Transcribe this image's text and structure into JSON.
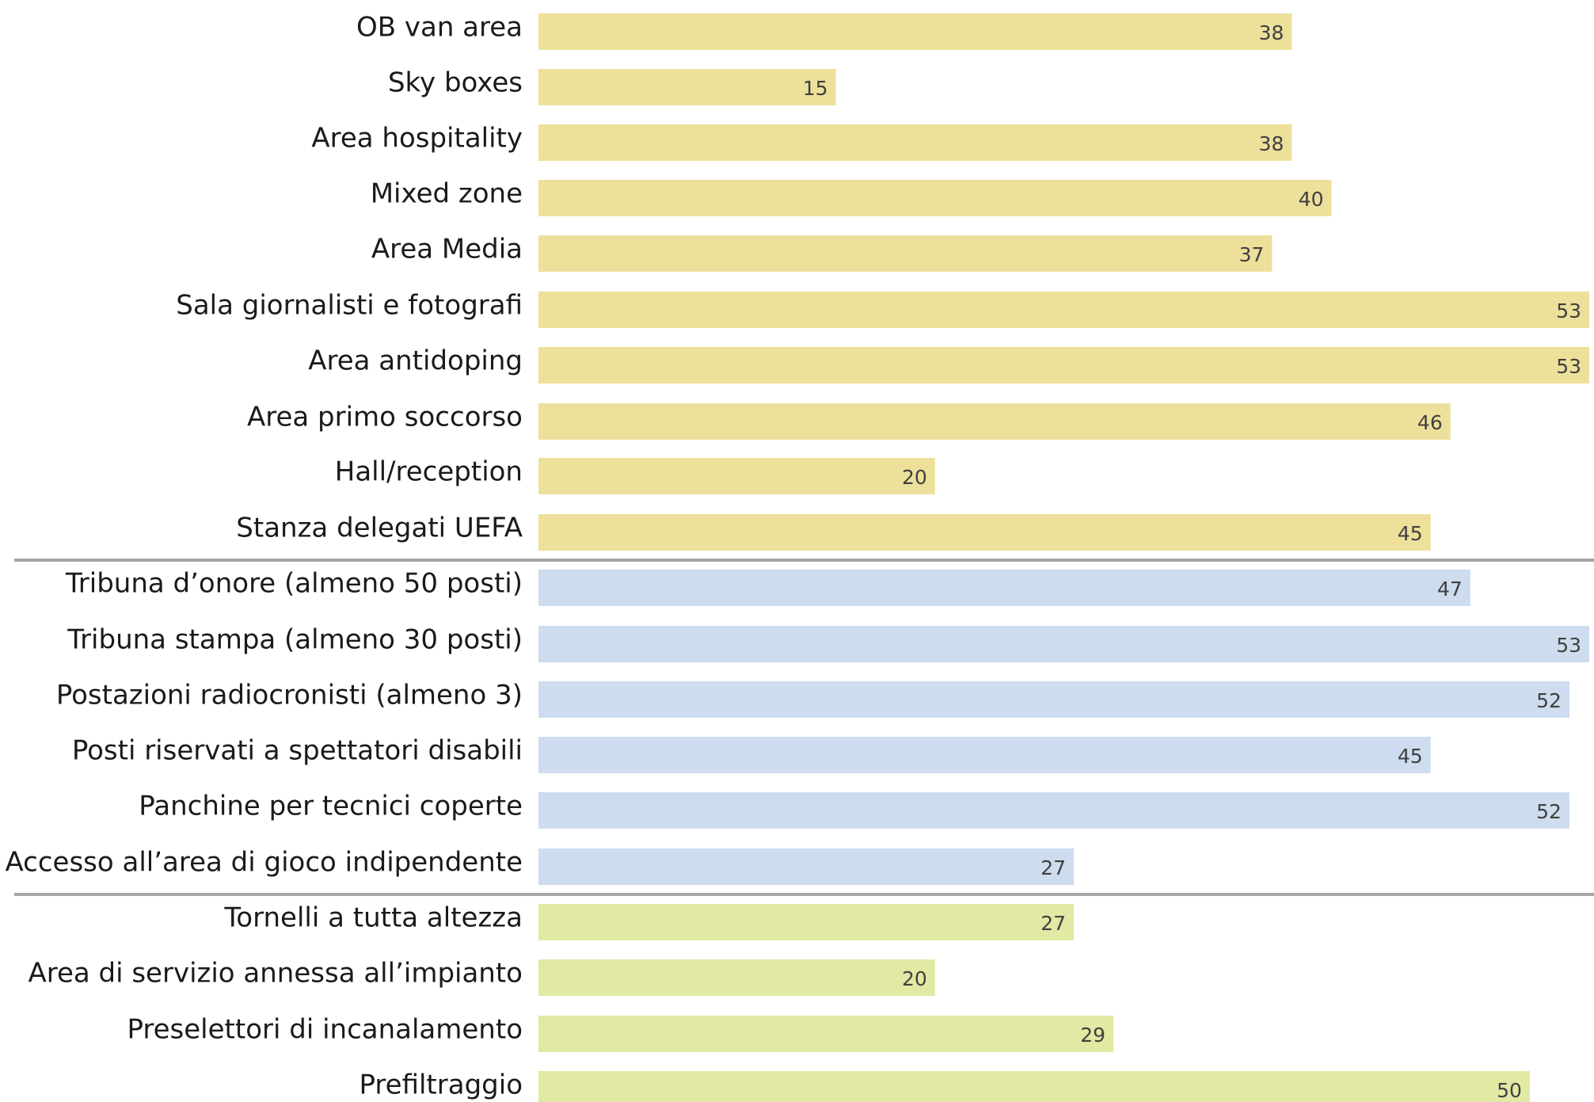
{
  "chart_data": {
    "type": "bar",
    "orientation": "horizontal",
    "xlim": [
      0,
      53
    ],
    "grid": false,
    "legend": "none",
    "group_colors": [
      "#ede09a",
      "#cddcee",
      "#e1e9a3"
    ],
    "separator_color": "#a6a6a6",
    "categories": [
      "OB van area",
      "Sky boxes",
      "Area hospitality",
      "Mixed zone",
      "Area Media",
      "Sala giornalisti e fotografi",
      "Area antidoping",
      "Area primo soccorso",
      "Hall/reception",
      "Stanza delegati UEFA",
      "Tribuna d’onore  (almeno 50 posti)",
      "Tribuna stampa (almeno 30 posti)",
      "Postazioni radiocronisti (almeno 3)",
      "Posti riservati a spettatori disabili",
      "Panchine per tecnici coperte",
      "Accesso all’area di gioco indipendente",
      "Tornelli a tutta altezza",
      "Area di servizio annessa all’impianto",
      "Preselettori di incanalamento",
      "Prefiltraggio"
    ],
    "values": [
      38,
      15,
      38,
      40,
      37,
      53,
      53,
      46,
      20,
      45,
      47,
      53,
      52,
      45,
      52,
      27,
      27,
      20,
      29,
      50
    ],
    "groups": [
      0,
      0,
      0,
      0,
      0,
      0,
      0,
      0,
      0,
      0,
      1,
      1,
      1,
      1,
      1,
      1,
      2,
      2,
      2,
      2
    ]
  }
}
